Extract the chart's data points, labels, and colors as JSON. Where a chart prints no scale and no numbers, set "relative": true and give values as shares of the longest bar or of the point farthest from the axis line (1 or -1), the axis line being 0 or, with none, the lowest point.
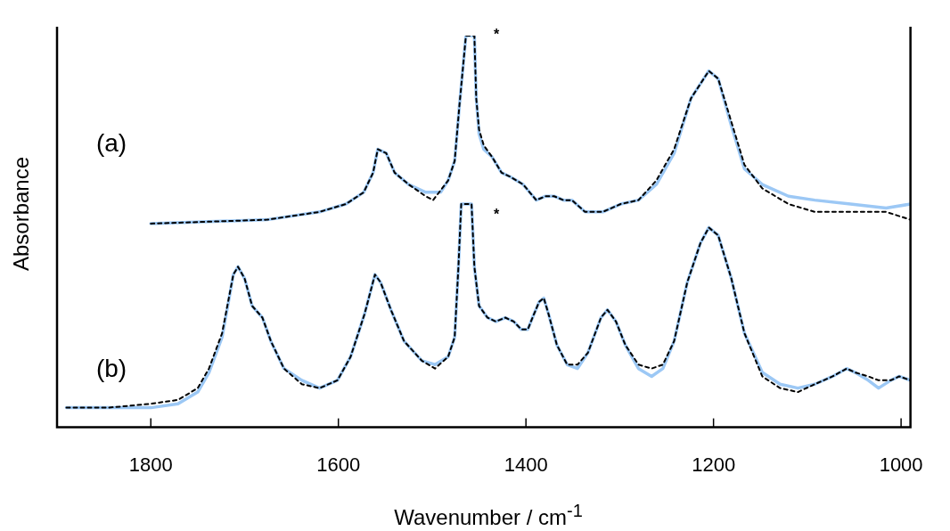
{
  "chart_data": {
    "type": "line",
    "relative": true,
    "xlabel": "Wavenumber / cm$^{-1}$",
    "ylabel": "Absorbance",
    "xlim": [
      1900,
      990
    ],
    "xticks": [
      1800,
      1600,
      1400,
      1200,
      1000
    ],
    "tick_labels": "x",
    "grid": false,
    "legend": false,
    "marker": "none",
    "annotations": [
      "(a)",
      "(b)",
      "*",
      "*"
    ],
    "series": [
      {
        "color": "#9cc8f5",
        "line_style": "solid",
        "x": [
          1800,
          1676,
          1620,
          1592,
          1573,
          1563,
          1558,
          1549,
          1540,
          1525,
          1507,
          1491,
          1483,
          1476,
          1471,
          1464,
          1455,
          1453,
          1450,
          1445,
          1436,
          1426,
          1417,
          1403,
          1389,
          1379,
          1370,
          1360,
          1351,
          1337,
          1318,
          1299,
          1280,
          1261,
          1242,
          1224,
          1205,
          1195,
          1181,
          1167,
          1148,
          1120,
          1092,
          1054,
          1016,
          990
        ],
        "values": [
          0.52,
          0.53,
          0.55,
          0.57,
          0.6,
          0.65,
          0.71,
          0.7,
          0.65,
          0.62,
          0.6,
          0.6,
          0.63,
          0.68,
          0.82,
          1,
          1,
          0.84,
          0.75,
          0.71,
          0.69,
          0.65,
          0.64,
          0.62,
          0.58,
          0.59,
          0.59,
          0.58,
          0.58,
          0.55,
          0.55,
          0.57,
          0.58,
          0.62,
          0.7,
          0.84,
          0.91,
          0.89,
          0.77,
          0.66,
          0.62,
          0.59,
          0.58,
          0.57,
          0.56,
          0.57
        ]
      },
      {
        "color": "#000000",
        "line_style": "dotted",
        "x": [
          1800,
          1676,
          1620,
          1592,
          1573,
          1563,
          1558,
          1549,
          1540,
          1525,
          1507,
          1499,
          1483,
          1476,
          1471,
          1464,
          1455,
          1453,
          1450,
          1445,
          1436,
          1426,
          1417,
          1403,
          1389,
          1379,
          1370,
          1360,
          1351,
          1337,
          1318,
          1299,
          1280,
          1261,
          1242,
          1224,
          1205,
          1195,
          1181,
          1167,
          1148,
          1120,
          1092,
          1054,
          1016,
          990
        ],
        "values": [
          0.52,
          0.53,
          0.55,
          0.57,
          0.6,
          0.65,
          0.71,
          0.7,
          0.65,
          0.62,
          0.59,
          0.58,
          0.63,
          0.68,
          0.82,
          1,
          1,
          0.84,
          0.76,
          0.72,
          0.69,
          0.65,
          0.64,
          0.62,
          0.58,
          0.59,
          0.59,
          0.58,
          0.58,
          0.55,
          0.55,
          0.57,
          0.58,
          0.63,
          0.71,
          0.84,
          0.91,
          0.89,
          0.78,
          0.67,
          0.61,
          0.57,
          0.55,
          0.55,
          0.55,
          0.53
        ]
      },
      {
        "color": "#9cc8f5",
        "line_style": "solid",
        "x": [
          1890,
          1846,
          1800,
          1771,
          1750,
          1738,
          1724,
          1712,
          1707,
          1700,
          1692,
          1681,
          1672,
          1658,
          1639,
          1620,
          1601,
          1587,
          1572,
          1561,
          1555,
          1544,
          1530,
          1511,
          1497,
          1483,
          1476,
          1472,
          1469,
          1458,
          1455,
          1450,
          1441,
          1432,
          1422,
          1413,
          1405,
          1398,
          1393,
          1386,
          1381,
          1376,
          1367,
          1356,
          1345,
          1334,
          1320,
          1313,
          1304,
          1294,
          1280,
          1266,
          1254,
          1242,
          1228,
          1214,
          1205,
          1195,
          1181,
          1167,
          1148,
          1129,
          1110,
          1092,
          1073,
          1058,
          1049,
          1035,
          1024,
          1011,
          1002,
          990
        ],
        "values": [
          0.05,
          0.05,
          0.05,
          0.06,
          0.09,
          0.14,
          0.23,
          0.39,
          0.41,
          0.38,
          0.31,
          0.28,
          0.22,
          0.15,
          0.12,
          0.1,
          0.12,
          0.18,
          0.29,
          0.39,
          0.37,
          0.3,
          0.22,
          0.17,
          0.16,
          0.18,
          0.23,
          0.41,
          0.57,
          0.57,
          0.41,
          0.31,
          0.28,
          0.27,
          0.28,
          0.27,
          0.25,
          0.25,
          0.28,
          0.32,
          0.33,
          0.29,
          0.21,
          0.16,
          0.15,
          0.19,
          0.28,
          0.3,
          0.27,
          0.21,
          0.15,
          0.13,
          0.15,
          0.22,
          0.37,
          0.47,
          0.51,
          0.49,
          0.38,
          0.24,
          0.14,
          0.11,
          0.1,
          0.11,
          0.13,
          0.15,
          0.14,
          0.12,
          0.1,
          0.12,
          0.13,
          0.12
        ]
      },
      {
        "color": "#000000",
        "line_style": "dotted",
        "x": [
          1890,
          1846,
          1800,
          1771,
          1750,
          1738,
          1724,
          1712,
          1707,
          1700,
          1692,
          1681,
          1672,
          1658,
          1639,
          1620,
          1601,
          1587,
          1572,
          1561,
          1555,
          1544,
          1530,
          1511,
          1497,
          1483,
          1476,
          1472,
          1469,
          1458,
          1455,
          1450,
          1441,
          1432,
          1422,
          1413,
          1405,
          1398,
          1393,
          1386,
          1381,
          1376,
          1367,
          1356,
          1345,
          1334,
          1320,
          1313,
          1304,
          1294,
          1280,
          1266,
          1254,
          1242,
          1228,
          1214,
          1205,
          1195,
          1181,
          1167,
          1148,
          1129,
          1110,
          1092,
          1073,
          1058,
          1049,
          1035,
          1024,
          1011,
          1002,
          990
        ],
        "values": [
          0.05,
          0.05,
          0.06,
          0.07,
          0.1,
          0.15,
          0.24,
          0.39,
          0.41,
          0.38,
          0.31,
          0.28,
          0.22,
          0.15,
          0.11,
          0.1,
          0.12,
          0.18,
          0.29,
          0.39,
          0.37,
          0.3,
          0.22,
          0.17,
          0.15,
          0.18,
          0.23,
          0.41,
          0.57,
          0.57,
          0.41,
          0.31,
          0.28,
          0.27,
          0.28,
          0.27,
          0.25,
          0.25,
          0.28,
          0.32,
          0.33,
          0.29,
          0.21,
          0.16,
          0.16,
          0.19,
          0.28,
          0.3,
          0.27,
          0.21,
          0.16,
          0.15,
          0.16,
          0.22,
          0.37,
          0.47,
          0.51,
          0.49,
          0.38,
          0.24,
          0.13,
          0.1,
          0.09,
          0.11,
          0.13,
          0.15,
          0.14,
          0.13,
          0.12,
          0.12,
          0.13,
          0.12
        ]
      }
    ]
  }
}
